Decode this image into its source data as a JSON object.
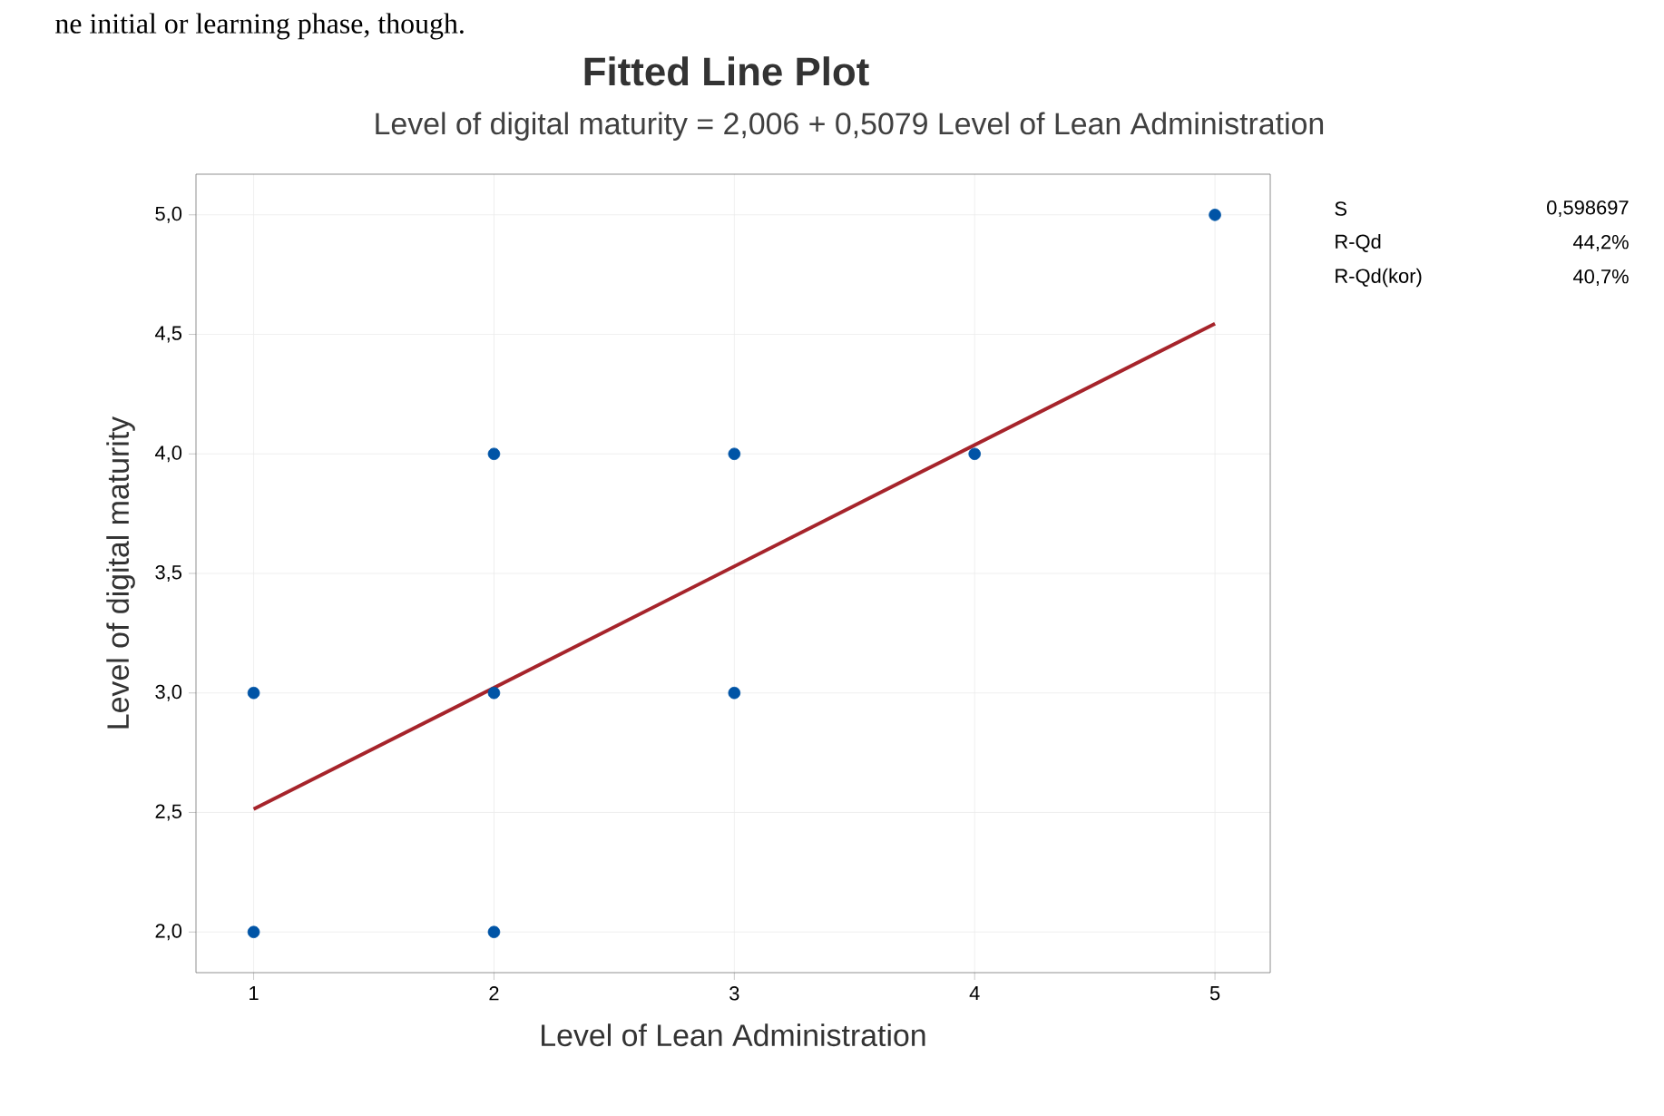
{
  "chart_data": {
    "type": "scatter",
    "title": "Fitted Line Plot",
    "subtitle": "Level of digital maturity = 2,006 + 0,5079 Level of Lean Administration",
    "xlabel": "Level of Lean Administration",
    "ylabel": "Level of digital maturity",
    "xlim": [
      0.76,
      5.23
    ],
    "ylim": [
      1.83,
      5.17
    ],
    "xticks": [
      1,
      2,
      3,
      4,
      5
    ],
    "yticks": [
      {
        "value": 2,
        "label": "2,0"
      },
      {
        "value": 2.5,
        "label": "2,5"
      },
      {
        "value": 3,
        "label": "3,0"
      },
      {
        "value": 3.5,
        "label": "3,5"
      },
      {
        "value": 4,
        "label": "4,0"
      },
      {
        "value": 4.5,
        "label": "4,5"
      },
      {
        "value": 5,
        "label": "5,0"
      }
    ],
    "grid": true,
    "series": [
      {
        "color": "#0054a6",
        "marker": "circle",
        "x": [
          1,
          1,
          2,
          2,
          2,
          3,
          3,
          4,
          5
        ],
        "values": [
          3,
          2,
          4,
          3,
          2,
          4,
          3,
          4,
          5
        ]
      },
      {
        "type": "line",
        "color": "#a6242b",
        "line_style": "solid",
        "marker": "none",
        "x": [
          1,
          5
        ],
        "values": [
          2.514,
          4.545
        ]
      }
    ],
    "annotations": [
      "ne initial or learning phase, though.",
      "S",
      "0,598697",
      "R-Qd",
      "44,2%",
      "R-Qd(kor)",
      "40,7%"
    ]
  }
}
